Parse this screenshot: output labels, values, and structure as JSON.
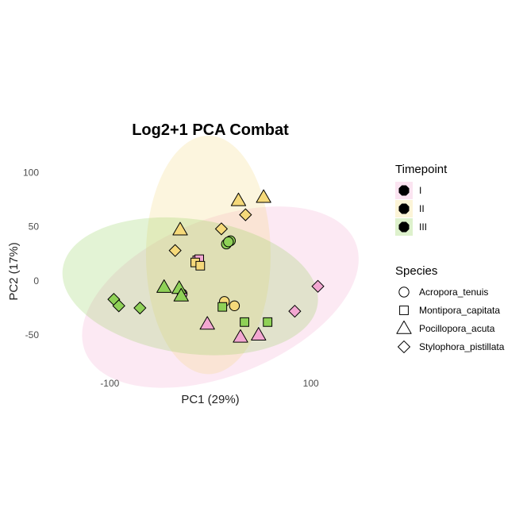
{
  "chart_data": {
    "type": "scatter",
    "title": "Log2+1 PCA Combat",
    "xlabel": "PC1 (29%)",
    "ylabel": "PC2 (17%)",
    "xlim": [
      -150,
      150
    ],
    "ylim": [
      -85,
      120
    ],
    "x_ticks": [
      -100,
      0,
      100
    ],
    "x_tick_labels": [
      "-100",
      "",
      "100"
    ],
    "y_ticks": [
      -50,
      0,
      50,
      100
    ],
    "y_tick_labels": [
      "-50",
      "0",
      "50",
      "100"
    ],
    "grid": false,
    "timepoint_legend": {
      "title": "Timepoint",
      "entries": [
        {
          "label": "I",
          "color": "#f2a7d1"
        },
        {
          "label": "II",
          "color": "#f5d97a"
        },
        {
          "label": "III",
          "color": "#8fd157"
        }
      ]
    },
    "species_legend": {
      "title": "Species",
      "entries": [
        {
          "label": "Acropora_tenuis",
          "shape": "circle"
        },
        {
          "label": "Montipora_capitata",
          "shape": "square"
        },
        {
          "label": "Pocillopora_acuta",
          "shape": "triangle"
        },
        {
          "label": "Stylophora_pistillata",
          "shape": "diamond"
        }
      ]
    },
    "ellipses": [
      {
        "timepoint": "I",
        "center": [
          10,
          -15
        ],
        "semi_axes": [
          145,
          72
        ],
        "rotation_deg": -22,
        "color": "#f2a7d1"
      },
      {
        "timepoint": "II",
        "center": [
          -2,
          24
        ],
        "semi_axes": [
          62,
          110
        ],
        "rotation_deg": 0,
        "color": "#f5d97a"
      },
      {
        "timepoint": "III",
        "center": [
          -20,
          -5
        ],
        "semi_axes": [
          128,
          62
        ],
        "rotation_deg": 8,
        "color": "#8fd157"
      }
    ],
    "points": [
      {
        "x": -28,
        "y": -12,
        "species": "Acropora_tenuis",
        "timepoint": "I"
      },
      {
        "x": 20,
        "y": 37,
        "species": "Acropora_tenuis",
        "timepoint": "III"
      },
      {
        "x": 16,
        "y": 34,
        "species": "Acropora_tenuis",
        "timepoint": "III"
      },
      {
        "x": 18,
        "y": 36,
        "species": "Acropora_tenuis",
        "timepoint": "III"
      },
      {
        "x": 14,
        "y": -19,
        "species": "Acropora_tenuis",
        "timepoint": "II"
      },
      {
        "x": 24,
        "y": -23,
        "species": "Acropora_tenuis",
        "timepoint": "II"
      },
      {
        "x": -13,
        "y": 19,
        "species": "Montipora_capitata",
        "timepoint": "I"
      },
      {
        "x": -11,
        "y": 20,
        "species": "Montipora_capitata",
        "timepoint": "I"
      },
      {
        "x": -15,
        "y": 17,
        "species": "Montipora_capitata",
        "timepoint": "II"
      },
      {
        "x": -10,
        "y": 14,
        "species": "Montipora_capitata",
        "timepoint": "II"
      },
      {
        "x": 12,
        "y": -24,
        "species": "Montipora_capitata",
        "timepoint": "III"
      },
      {
        "x": 34,
        "y": -38,
        "species": "Montipora_capitata",
        "timepoint": "III"
      },
      {
        "x": 57,
        "y": -38,
        "species": "Montipora_capitata",
        "timepoint": "III"
      },
      {
        "x": 28,
        "y": 74,
        "species": "Pocillopora_acuta",
        "timepoint": "II"
      },
      {
        "x": 53,
        "y": 77,
        "species": "Pocillopora_acuta",
        "timepoint": "II"
      },
      {
        "x": -30,
        "y": 47,
        "species": "Pocillopora_acuta",
        "timepoint": "II"
      },
      {
        "x": -46,
        "y": -6,
        "species": "Pocillopora_acuta",
        "timepoint": "III"
      },
      {
        "x": -31,
        "y": -7,
        "species": "Pocillopora_acuta",
        "timepoint": "III"
      },
      {
        "x": -29,
        "y": -14,
        "species": "Pocillopora_acuta",
        "timepoint": "III"
      },
      {
        "x": -3,
        "y": -40,
        "species": "Pocillopora_acuta",
        "timepoint": "I"
      },
      {
        "x": 30,
        "y": -52,
        "species": "Pocillopora_acuta",
        "timepoint": "I"
      },
      {
        "x": 48,
        "y": -50,
        "species": "Pocillopora_acuta",
        "timepoint": "I"
      },
      {
        "x": 11,
        "y": 48,
        "species": "Stylophora_pistillata",
        "timepoint": "II"
      },
      {
        "x": 35,
        "y": 61,
        "species": "Stylophora_pistillata",
        "timepoint": "II"
      },
      {
        "x": -35,
        "y": 28,
        "species": "Stylophora_pistillata",
        "timepoint": "II"
      },
      {
        "x": -96,
        "y": -17,
        "species": "Stylophora_pistillata",
        "timepoint": "III"
      },
      {
        "x": -91,
        "y": -23,
        "species": "Stylophora_pistillata",
        "timepoint": "III"
      },
      {
        "x": -70,
        "y": -25,
        "species": "Stylophora_pistillata",
        "timepoint": "III"
      },
      {
        "x": 84,
        "y": -28,
        "species": "Stylophora_pistillata",
        "timepoint": "I"
      },
      {
        "x": 107,
        "y": -5,
        "species": "Stylophora_pistillata",
        "timepoint": "I"
      }
    ]
  }
}
